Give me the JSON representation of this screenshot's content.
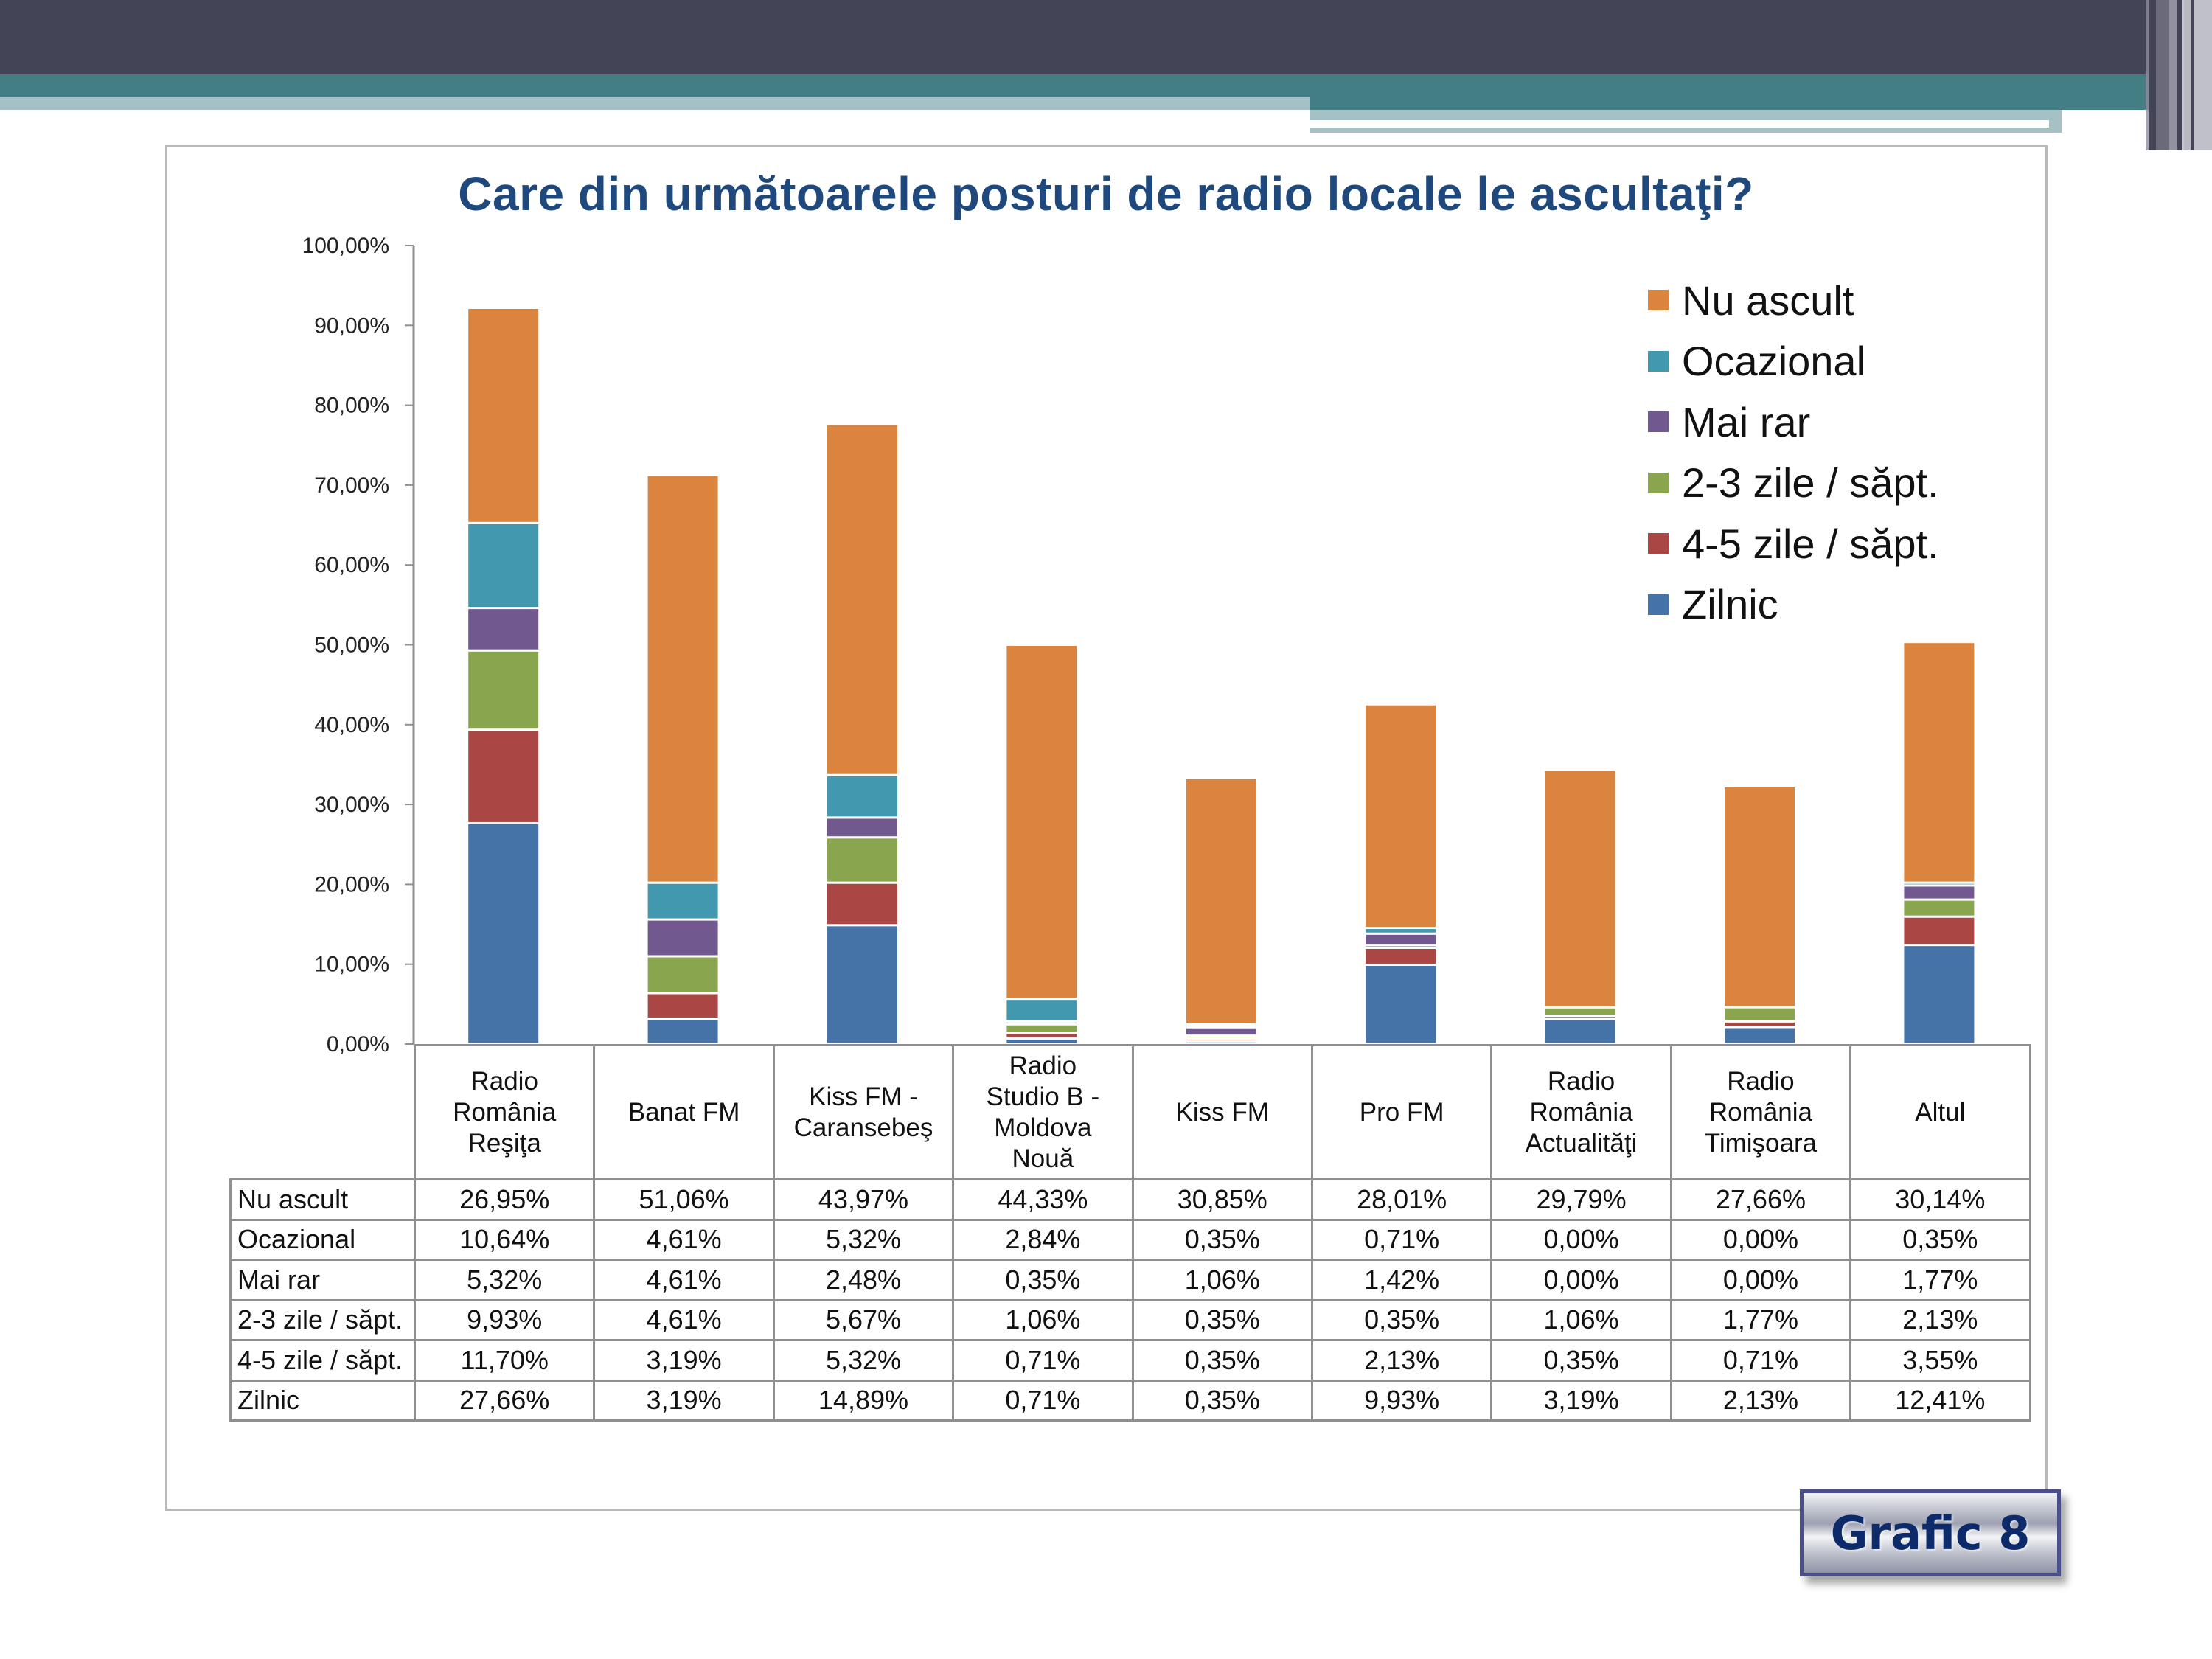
{
  "slide": {
    "badge_label": "Grafic 8",
    "theme_colors": {
      "header_dark": "#434455",
      "header_teal": "#437e85",
      "header_light": "#a5c1c5"
    }
  },
  "chart_data": {
    "type": "bar",
    "stacked": true,
    "title": "Care din următoarele posturi de radio locale le ascultaţi?",
    "xlabel": "",
    "ylabel": "",
    "ylim": [
      0,
      100
    ],
    "y_ticks": [
      "0,00%",
      "10,00%",
      "20,00%",
      "30,00%",
      "40,00%",
      "50,00%",
      "60,00%",
      "70,00%",
      "80,00%",
      "90,00%",
      "100,00%"
    ],
    "grid": false,
    "legend_position": "top-right",
    "categories": [
      [
        "Radio",
        "România",
        "Reşiţa"
      ],
      [
        "Banat FM"
      ],
      [
        "Kiss FM -",
        "Caransebeş"
      ],
      [
        "Radio",
        "Studio B -",
        "Moldova",
        "Nouă"
      ],
      [
        "Kiss FM"
      ],
      [
        "Pro FM"
      ],
      [
        "Radio",
        "România",
        "Actualităţi"
      ],
      [
        "Radio",
        "România",
        "Timişoara"
      ],
      [
        "Altul"
      ]
    ],
    "series": [
      {
        "name": "Zilnic",
        "color": "#4572a7",
        "values": [
          27.66,
          3.19,
          14.89,
          0.71,
          0.35,
          9.93,
          3.19,
          2.13,
          12.41
        ],
        "labels": [
          "27,66%",
          "3,19%",
          "14,89%",
          "0,71%",
          "0,35%",
          "9,93%",
          "3,19%",
          "2,13%",
          "12,41%"
        ]
      },
      {
        "name": "4-5 zile / săpt.",
        "color": "#aa4643",
        "values": [
          11.7,
          3.19,
          5.32,
          0.71,
          0.35,
          2.13,
          0.35,
          0.71,
          3.55
        ],
        "labels": [
          "11,70%",
          "3,19%",
          "5,32%",
          "0,71%",
          "0,35%",
          "2,13%",
          "0,35%",
          "0,71%",
          "3,55%"
        ]
      },
      {
        "name": "2-3 zile / săpt.",
        "color": "#89a54e",
        "values": [
          9.93,
          4.61,
          5.67,
          1.06,
          0.35,
          0.35,
          1.06,
          1.77,
          2.13
        ],
        "labels": [
          "9,93%",
          "4,61%",
          "5,67%",
          "1,06%",
          "0,35%",
          "0,35%",
          "1,06%",
          "1,77%",
          "2,13%"
        ]
      },
      {
        "name": "Mai rar",
        "color": "#71588f",
        "values": [
          5.32,
          4.61,
          2.48,
          0.35,
          1.06,
          1.42,
          0.0,
          0.0,
          1.77
        ],
        "labels": [
          "5,32%",
          "4,61%",
          "2,48%",
          "0,35%",
          "1,06%",
          "1,42%",
          "0,00%",
          "0,00%",
          "1,77%"
        ]
      },
      {
        "name": "Ocazional",
        "color": "#4198af",
        "values": [
          10.64,
          4.61,
          5.32,
          2.84,
          0.35,
          0.71,
          0.0,
          0.0,
          0.35
        ],
        "labels": [
          "10,64%",
          "4,61%",
          "5,32%",
          "2,84%",
          "0,35%",
          "0,71%",
          "0,00%",
          "0,00%",
          "0,35%"
        ]
      },
      {
        "name": "Nu ascult",
        "color": "#db843d",
        "values": [
          26.95,
          51.06,
          43.97,
          44.33,
          30.85,
          28.01,
          29.79,
          27.66,
          30.14
        ],
        "labels": [
          "26,95%",
          "51,06%",
          "43,97%",
          "44,33%",
          "30,85%",
          "28,01%",
          "29,79%",
          "27,66%",
          "30,14%"
        ]
      }
    ],
    "legend_order": [
      "Nu ascult",
      "Ocazional",
      "Mai rar",
      "2-3 zile / săpt.",
      "4-5 zile / săpt.",
      "Zilnic"
    ],
    "table_row_order": [
      "Nu ascult",
      "Ocazional",
      "Mai rar",
      "2-3 zile / săpt.",
      "4-5 zile / săpt.",
      "Zilnic"
    ]
  }
}
